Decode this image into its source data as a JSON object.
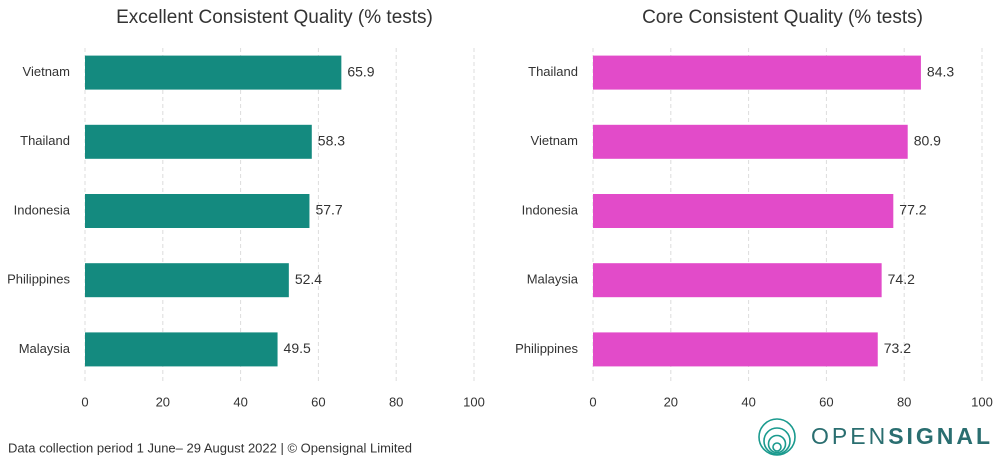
{
  "chart_data": [
    {
      "type": "bar",
      "orientation": "horizontal",
      "title": "Excellent Consistent Quality (% tests)",
      "categories": [
        "Vietnam",
        "Thailand",
        "Indonesia",
        "Philippines",
        "Malaysia"
      ],
      "values": [
        65.9,
        58.3,
        57.7,
        52.4,
        49.5
      ],
      "color": "#148a7f",
      "xlim": [
        0,
        100
      ],
      "xticks": [
        0,
        20,
        40,
        60,
        80,
        100
      ],
      "grid": true
    },
    {
      "type": "bar",
      "orientation": "horizontal",
      "title": "Core Consistent Quality (% tests)",
      "categories": [
        "Thailand",
        "Vietnam",
        "Indonesia",
        "Malaysia",
        "Philippines"
      ],
      "values": [
        84.3,
        80.9,
        77.2,
        74.2,
        73.2
      ],
      "color": "#e24bc9",
      "xlim": [
        0,
        100
      ],
      "xticks": [
        0,
        20,
        40,
        60,
        80,
        100
      ],
      "grid": true
    }
  ],
  "footer": "Data collection period 1 June– 29 August 2022  |  © Opensignal Limited",
  "logo": {
    "light": "OPEN",
    "bold": "SIGNAL"
  }
}
